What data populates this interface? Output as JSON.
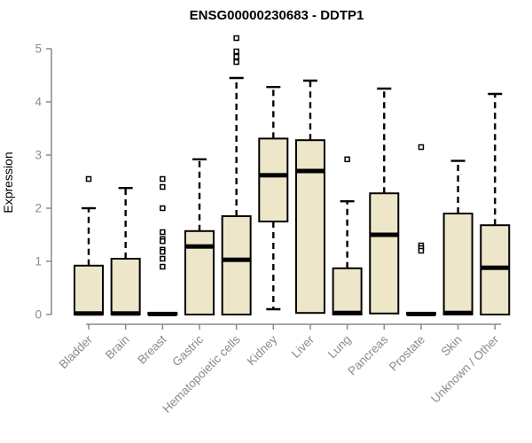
{
  "chart_data": {
    "type": "boxplot",
    "title": "ENSG00000230683 - DDTP1",
    "ylabel": "Expression",
    "xlabel": "",
    "ylim": [
      0,
      5
    ],
    "yticks": [
      0,
      1,
      2,
      3,
      4,
      5
    ],
    "grid": false,
    "legend": "none",
    "categories": [
      "Bladder",
      "Brain",
      "Breast",
      "Gastric",
      "Hematopoietic cells",
      "Kidney",
      "Liver",
      "Lung",
      "Pancreas",
      "Prostate",
      "Skin",
      "Unknown / Other"
    ],
    "boxes": [
      {
        "category": "Bladder",
        "low": 0,
        "q1": 0,
        "median": 0.02,
        "q3": 0.92,
        "high": 2.0,
        "outliers": [
          2.55
        ]
      },
      {
        "category": "Brain",
        "low": 0,
        "q1": 0,
        "median": 0.02,
        "q3": 1.05,
        "high": 2.38,
        "outliers": []
      },
      {
        "category": "Breast",
        "low": 0,
        "q1": 0,
        "median": 0.01,
        "q3": 0.03,
        "high": 0.03,
        "outliers": [
          2.55,
          2.4,
          2.0,
          1.55,
          1.42,
          1.38,
          1.22,
          1.18,
          1.05,
          0.9
        ]
      },
      {
        "category": "Gastric",
        "low": 0,
        "q1": 0,
        "median": 1.28,
        "q3": 1.57,
        "high": 2.92,
        "outliers": []
      },
      {
        "category": "Hematopoietic cells",
        "low": 0,
        "q1": 0,
        "median": 1.03,
        "q3": 1.85,
        "high": 4.45,
        "outliers": [
          5.2,
          4.95,
          4.85,
          4.75
        ]
      },
      {
        "category": "Kidney",
        "low": 0.1,
        "q1": 1.75,
        "median": 2.62,
        "q3": 3.31,
        "high": 4.28,
        "outliers": []
      },
      {
        "category": "Liver",
        "low": 0.03,
        "q1": 0.03,
        "median": 2.7,
        "q3": 3.28,
        "high": 4.4,
        "outliers": []
      },
      {
        "category": "Lung",
        "low": 0,
        "q1": 0,
        "median": 0.03,
        "q3": 0.87,
        "high": 2.13,
        "outliers": [
          2.92
        ]
      },
      {
        "category": "Pancreas",
        "low": 0,
        "q1": 0.02,
        "median": 1.5,
        "q3": 2.28,
        "high": 4.25,
        "outliers": []
      },
      {
        "category": "Prostate",
        "low": 0,
        "q1": 0,
        "median": 0.01,
        "q3": 0.03,
        "high": 0.03,
        "outliers": [
          3.15,
          1.3,
          1.25,
          1.2
        ]
      },
      {
        "category": "Skin",
        "low": 0,
        "q1": 0,
        "median": 0.03,
        "q3": 1.9,
        "high": 2.89,
        "outliers": []
      },
      {
        "category": "Unknown / Other",
        "low": 0,
        "q1": 0,
        "median": 0.88,
        "q3": 1.68,
        "high": 4.15,
        "outliers": []
      }
    ]
  },
  "colors": {
    "box_fill": "#EDE6C8",
    "box_stroke": "#000000",
    "median": "#000000",
    "outlier_fill": "#FFFFFF",
    "axis": "#8A8A8A",
    "tick_text": "#8A8A8A",
    "title_text": "#000000",
    "background": "#FFFFFF"
  }
}
